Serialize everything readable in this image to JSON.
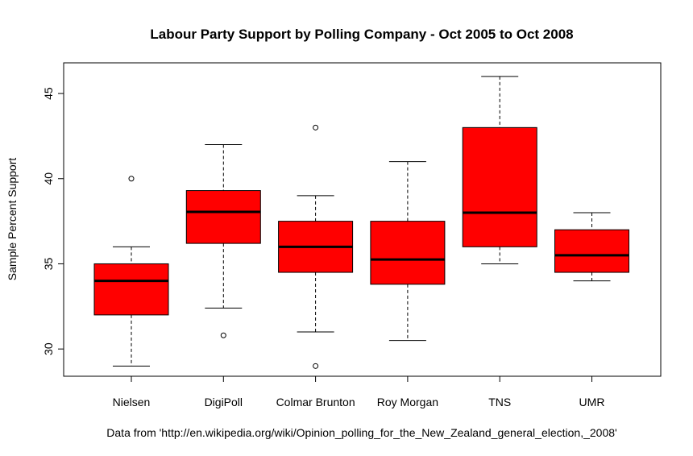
{
  "chart_data": {
    "type": "box",
    "title": "Labour Party Support by Polling Company - Oct 2005 to Oct 2008",
    "ylabel": "Sample Percent Support",
    "xlabel": "",
    "note": "Data from 'http://en.wikipedia.org/wiki/Opinion_polling_for_the_New_Zealand_general_election,_2008'",
    "ylim": [
      28.4,
      46.8
    ],
    "yticks": [
      30,
      35,
      40,
      45
    ],
    "grid": false,
    "box_color": "#ff0000",
    "categories": [
      "Nielsen",
      "DigiPoll",
      "Colmar Brunton",
      "Roy Morgan",
      "TNS",
      "UMR"
    ],
    "boxes": [
      {
        "name": "Nielsen",
        "whisker_low": 29,
        "q1": 32,
        "median": 34,
        "q3": 35,
        "whisker_high": 36,
        "outliers": [
          40
        ]
      },
      {
        "name": "DigiPoll",
        "whisker_low": 32.4,
        "q1": 36.2,
        "median": 38.05,
        "q3": 39.3,
        "whisker_high": 42,
        "outliers": [
          30.8
        ]
      },
      {
        "name": "Colmar Brunton",
        "whisker_low": 31,
        "q1": 34.5,
        "median": 36,
        "q3": 37.5,
        "whisker_high": 39,
        "outliers": [
          43,
          29
        ]
      },
      {
        "name": "Roy Morgan",
        "whisker_low": 30.5,
        "q1": 33.8,
        "median": 35.25,
        "q3": 37.5,
        "whisker_high": 41,
        "outliers": []
      },
      {
        "name": "TNS",
        "whisker_low": 35,
        "q1": 36,
        "median": 38,
        "q3": 43,
        "whisker_high": 46,
        "outliers": []
      },
      {
        "name": "UMR",
        "whisker_low": 34,
        "q1": 34.5,
        "median": 35.5,
        "q3": 37,
        "whisker_high": 38,
        "outliers": []
      }
    ]
  }
}
